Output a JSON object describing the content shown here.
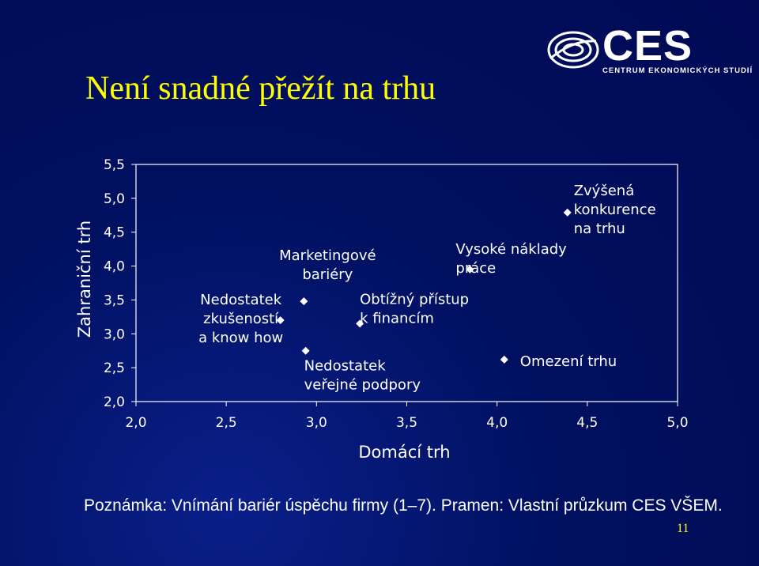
{
  "slide": {
    "title": "Není snadné přežít na trhu",
    "note": "Poznámka: Vnímání bariér úspěchu firmy (1–7). Pramen: Vlastní průzkum CES VŠEM.",
    "page_number": "11",
    "logo": {
      "name": "CES",
      "subtitle": "CENTRUM EKONOMICKÝCH STUDIÍ",
      "icon": "globe-icon"
    }
  },
  "colors": {
    "background": "#000f6e",
    "title": "#ffff00",
    "text": "#ffffff",
    "marker": "#ffffff"
  },
  "chart_data": {
    "type": "scatter",
    "title": "",
    "xlabel": "Domácí trh",
    "ylabel": "Zahraniční trh",
    "xlim": [
      2.0,
      5.0
    ],
    "ylim": [
      2.0,
      5.5
    ],
    "x_ticks": [
      "2,0",
      "2,5",
      "3,0",
      "3,5",
      "4,0",
      "4,5",
      "5,0"
    ],
    "y_ticks": [
      "2,0",
      "2,5",
      "3,0",
      "3,5",
      "4,0",
      "4,5",
      "5,0",
      "5,5"
    ],
    "grid": false,
    "legend": "none",
    "marker": "diamond",
    "points": [
      {
        "label_lines": [
          "Nedostatek",
          "zkušeností",
          "a know how"
        ],
        "x": 2.8,
        "y": 3.2
      },
      {
        "label_lines": [
          "Marketingové",
          "bariéry"
        ],
        "x": 2.93,
        "y": 3.48
      },
      {
        "label_lines": [
          "Nedostatek",
          "veřejné podpory"
        ],
        "x": 2.94,
        "y": 2.75
      },
      {
        "label_lines": [
          "Obtížný přístup",
          "k financím"
        ],
        "x": 3.24,
        "y": 3.15
      },
      {
        "label_lines": [
          "Vysoké náklady",
          "práce"
        ],
        "x": 3.85,
        "y": 3.95
      },
      {
        "label_lines": [
          "Omezení trhu"
        ],
        "x": 4.04,
        "y": 2.62
      },
      {
        "label_lines": [
          "Zvýšená",
          "konkurence",
          "na trhu"
        ],
        "x": 4.39,
        "y": 4.79
      }
    ]
  }
}
